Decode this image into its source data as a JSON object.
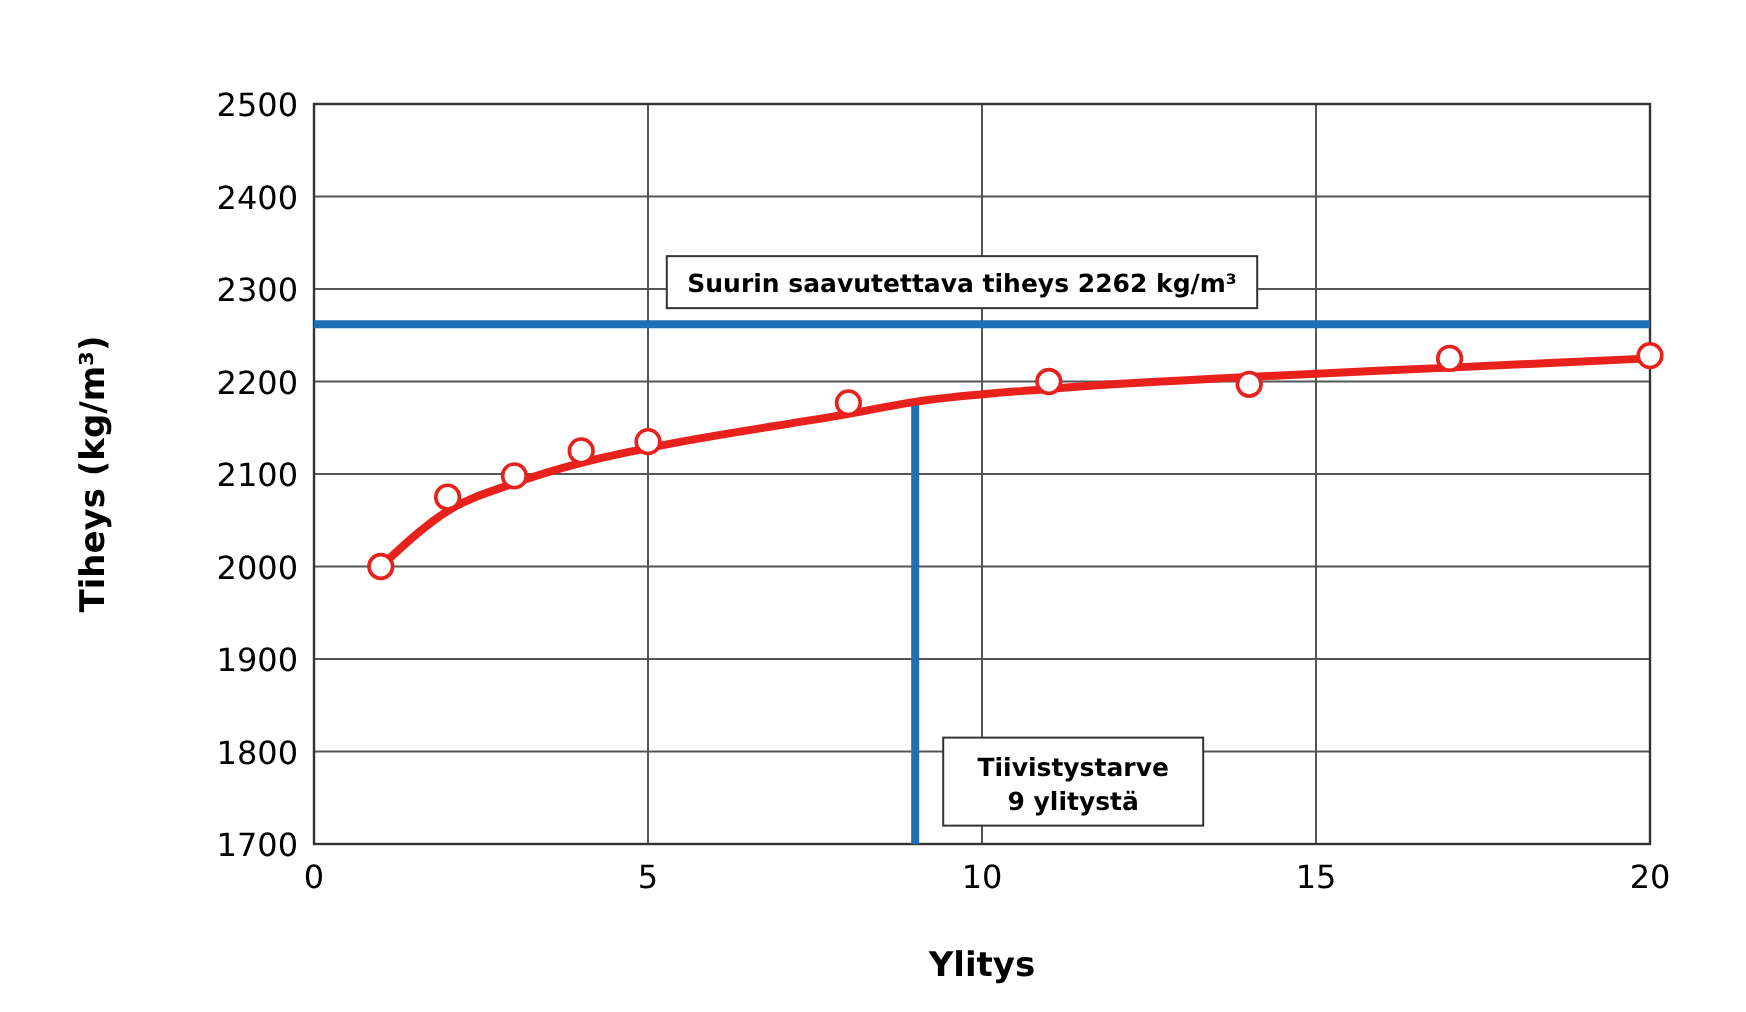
{
  "chart_data": {
    "type": "scatter",
    "xlabel": "Ylitys",
    "ylabel": "Tiheys (kg/m³)",
    "xlim": [
      0,
      20
    ],
    "xticks": [
      0,
      5,
      10,
      15,
      20
    ],
    "ylim": [
      1700,
      2500
    ],
    "yticks": [
      1700,
      1800,
      1900,
      2000,
      2100,
      2200,
      2300,
      2400,
      2500
    ],
    "grid": true,
    "series": [
      {
        "type": "line",
        "color": "#e8211c",
        "marker": "none",
        "x": [
          1,
          2,
          3,
          4,
          5,
          8,
          9,
          11,
          14,
          17,
          20
        ],
        "values": [
          2000,
          2060,
          2090,
          2112,
          2128,
          2165,
          2178,
          2192,
          2205,
          2215,
          2225
        ]
      },
      {
        "color": "#e8211c",
        "marker": "circle",
        "x": [
          1,
          2,
          3,
          4,
          5,
          8,
          11,
          14,
          17,
          20
        ],
        "values": [
          2000,
          2075,
          2098,
          2125,
          2135,
          2177,
          2200,
          2197,
          2225,
          2228
        ]
      }
    ],
    "ref_lines": [
      {
        "axis": "y",
        "value": 2262,
        "label": "Suurin saavutettava tiheys 2262 kg/m³",
        "color": "#1f6fb5"
      },
      {
        "axis": "x",
        "value": 9,
        "label": "Tiivistystarve\n9 ylitystä",
        "color": "#1f6fb5"
      }
    ]
  }
}
